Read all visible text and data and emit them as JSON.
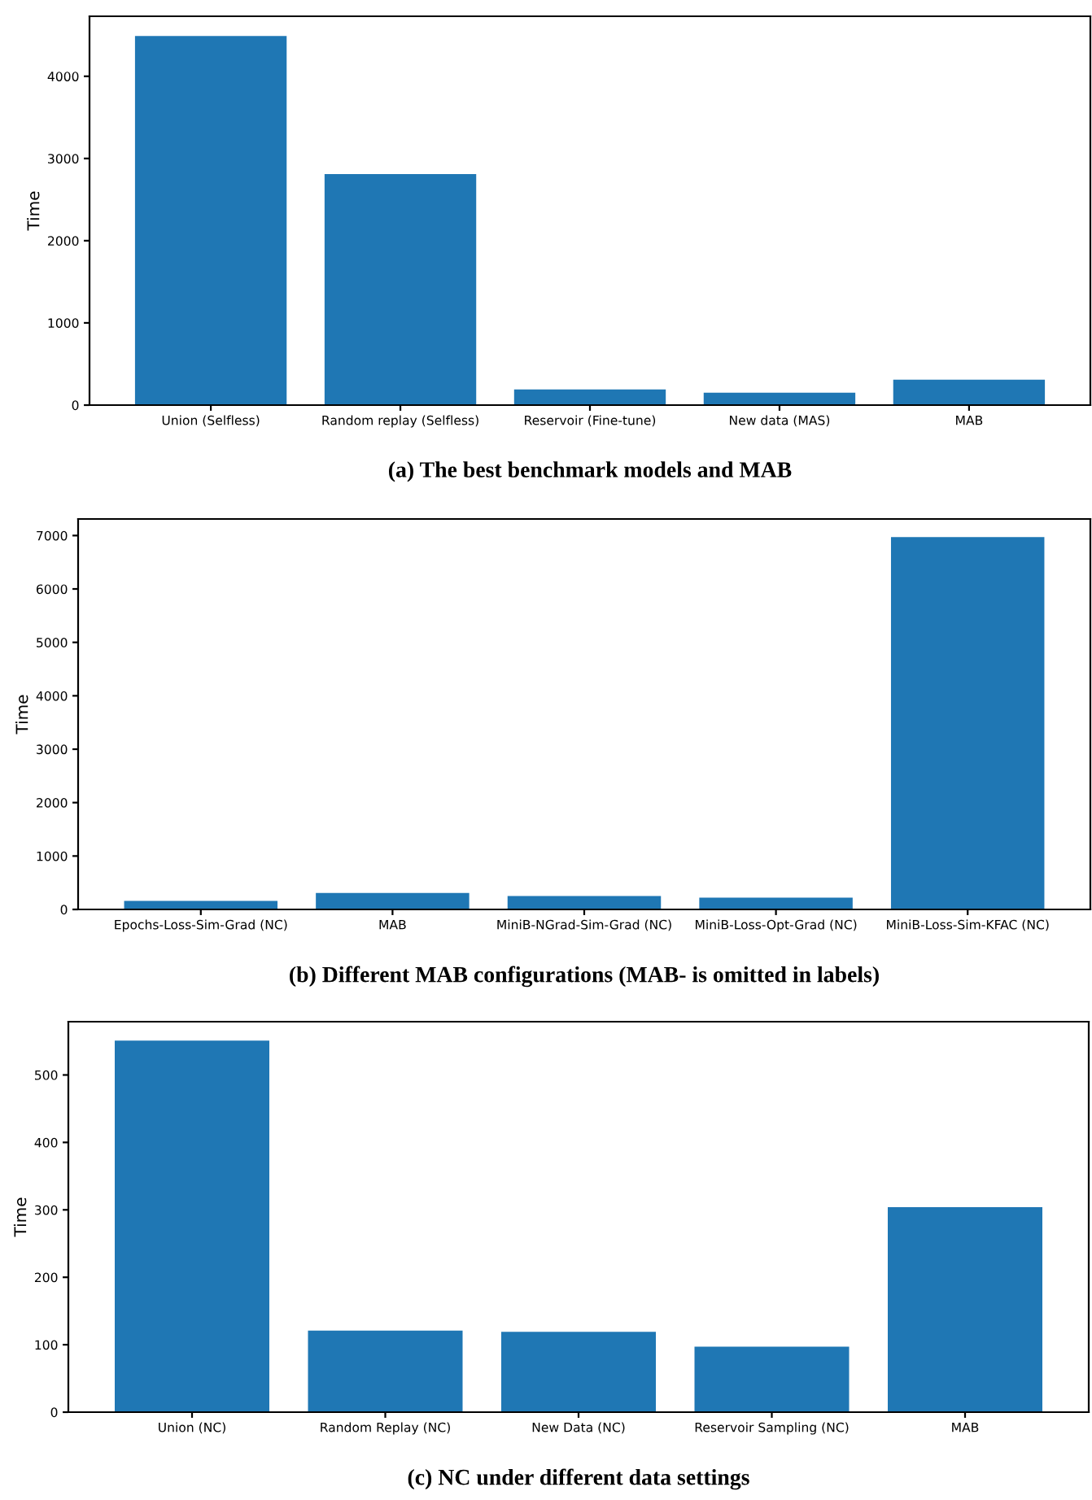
{
  "chart_data": [
    {
      "type": "bar",
      "title": "(a) The best benchmark models and MAB",
      "ylabel": "Time",
      "categories": [
        "Union (Selfless)",
        "Random replay (Selfless)",
        "Reservoir (Fine-tune)",
        "New data (MAS)",
        "MAB"
      ],
      "values": [
        4490,
        2810,
        190,
        150,
        310
      ],
      "color": "#1f77b4",
      "ylim": [
        0,
        4730
      ],
      "yticks": [
        0,
        1000,
        2000,
        3000,
        4000
      ],
      "grid": false,
      "legend": false
    },
    {
      "type": "bar",
      "title": "(b) Different MAB configurations (MAB- is omitted in labels)",
      "ylabel": "Time",
      "categories": [
        "Epochs-Loss-Sim-Grad (NC)",
        "MAB",
        "MiniB-NGrad-Sim-Grad (NC)",
        "MiniB-Loss-Opt-Grad (NC)",
        "MiniB-Loss-Sim-KFAC (NC)"
      ],
      "values": [
        160,
        310,
        250,
        220,
        6970
      ],
      "color": "#1f77b4",
      "ylim": [
        0,
        7310
      ],
      "yticks": [
        0,
        1000,
        2000,
        3000,
        4000,
        5000,
        6000,
        7000
      ],
      "grid": false,
      "legend": false
    },
    {
      "type": "bar",
      "title": "(c) NC under different data settings",
      "ylabel": "Time",
      "categories": [
        "Union (NC)",
        "Random Replay (NC)",
        "New Data (NC)",
        "Reservoir Sampling (NC)",
        "MAB"
      ],
      "values": [
        551,
        121,
        119,
        97,
        304
      ],
      "color": "#1f77b4",
      "ylim": [
        0,
        579
      ],
      "yticks": [
        0,
        100,
        200,
        300,
        400,
        500
      ],
      "grid": false,
      "legend": false
    }
  ]
}
